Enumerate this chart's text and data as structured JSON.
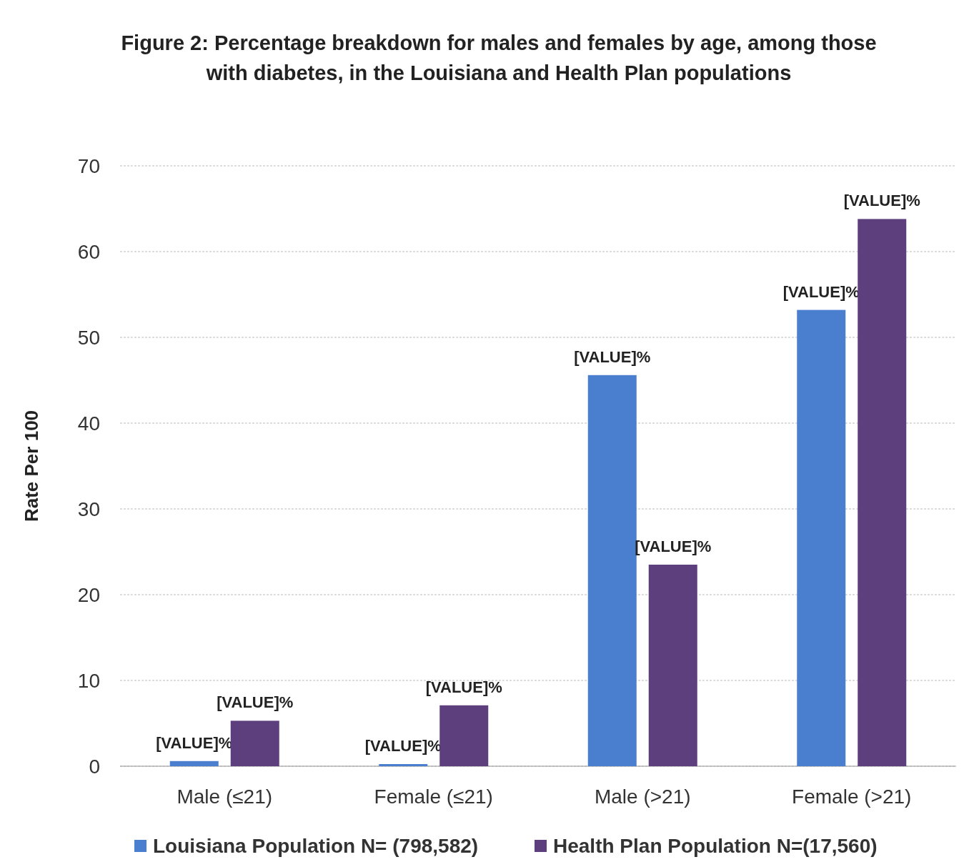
{
  "chart_data": {
    "type": "bar",
    "title": "Figure 2: Percentage breakdown for males and females by age, among those with diabetes, in the Louisiana and Health Plan populations",
    "ylabel": "Rate Per 100",
    "categories": [
      "Male (≤21)",
      "Female (≤21)",
      "Male (>21)",
      "Female (>21)"
    ],
    "series": [
      {
        "name": "Louisiana Population N= (798,582)",
        "color": "#4a7fd0",
        "values": [
          0.6,
          0.25,
          45.6,
          53.2
        ],
        "value_labels": [
          "[VALUE]%",
          "[VALUE]%",
          "[VALUE]%",
          "[VALUE]%"
        ]
      },
      {
        "name": "Health Plan Population N=(17,560)",
        "color": "#5e3f7e",
        "values": [
          5.3,
          7.1,
          23.5,
          63.8
        ],
        "value_labels": [
          "[VALUE]%",
          "[VALUE]%",
          "[VALUE]%",
          "[VALUE]%"
        ]
      }
    ],
    "ylim": [
      0,
      70
    ],
    "yticks": [
      0,
      10,
      20,
      30,
      40,
      50,
      60,
      70
    ],
    "grid": "y",
    "legend": "bottom"
  }
}
